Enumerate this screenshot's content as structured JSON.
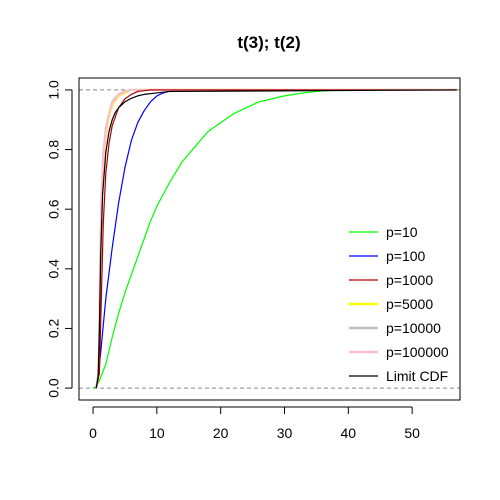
{
  "chart_data": {
    "type": "line",
    "title": "t(3); t(2)",
    "xlabel": "",
    "ylabel": "",
    "xlim": [
      -2.2,
      57.5
    ],
    "ylim": [
      -0.04,
      1.04
    ],
    "x_ticks": [
      0,
      10,
      20,
      30,
      40,
      50
    ],
    "y_ticks": [
      0.0,
      0.2,
      0.4,
      0.6,
      0.8,
      1.0
    ],
    "x_tick_labels": [
      "0",
      "10",
      "20",
      "30",
      "40",
      "50"
    ],
    "y_tick_labels": [
      "0.0",
      "0.2",
      "0.4",
      "0.6",
      "0.8",
      "1.0"
    ],
    "hlines": [
      0,
      1
    ],
    "legend_position": "right",
    "series": [
      {
        "name": "p=10",
        "color": "#00ff00",
        "x": [
          0,
          0.5,
          1,
          2,
          3,
          4,
          5,
          6,
          7,
          8,
          9,
          10,
          12,
          14,
          16,
          18,
          20,
          22,
          24,
          26,
          28,
          30,
          33,
          36,
          40,
          45,
          57
        ],
        "y": [
          0,
          0.005,
          0.025,
          0.08,
          0.17,
          0.25,
          0.32,
          0.38,
          0.44,
          0.5,
          0.56,
          0.61,
          0.69,
          0.76,
          0.81,
          0.86,
          0.89,
          0.92,
          0.94,
          0.96,
          0.97,
          0.98,
          0.99,
          0.997,
          1.0,
          1.0,
          1.0
        ]
      },
      {
        "name": "p=100",
        "color": "#0000ff",
        "x": [
          0.4,
          0.8,
          1.2,
          2,
          3,
          4,
          5,
          6,
          7,
          8,
          9,
          10,
          11,
          12,
          14,
          57
        ],
        "y": [
          0,
          0.04,
          0.12,
          0.3,
          0.47,
          0.62,
          0.74,
          0.83,
          0.89,
          0.93,
          0.96,
          0.98,
          0.99,
          0.996,
          1.0,
          1.0
        ]
      },
      {
        "name": "p=1000",
        "color": "#aa0000",
        "x": [
          0.5,
          1,
          1.3,
          1.6,
          2,
          2.5,
          3,
          4,
          5,
          6,
          7,
          9,
          57
        ],
        "y": [
          0,
          0.05,
          0.3,
          0.55,
          0.72,
          0.82,
          0.88,
          0.94,
          0.97,
          0.985,
          0.995,
          1.0,
          1.0
        ]
      },
      {
        "name": "p=5000",
        "color": "#ffff00",
        "x": [
          0.5,
          0.9,
          1.1,
          1.3,
          1.6,
          2,
          2.5,
          3,
          4,
          5,
          6,
          57
        ],
        "y": [
          0,
          0.05,
          0.35,
          0.58,
          0.75,
          0.85,
          0.91,
          0.95,
          0.98,
          0.99,
          1.0,
          1.0
        ]
      },
      {
        "name": "p=10000",
        "color": "#c0c0c0",
        "x": [
          0.5,
          0.9,
          1.1,
          1.3,
          1.6,
          2,
          2.5,
          3,
          4,
          5,
          6,
          57
        ],
        "y": [
          0,
          0.06,
          0.38,
          0.62,
          0.78,
          0.87,
          0.92,
          0.96,
          0.985,
          0.995,
          1.0,
          1.0
        ]
      },
      {
        "name": "p=100000",
        "color": "#ffc0cb",
        "x": [
          0.5,
          0.9,
          1.1,
          1.3,
          1.6,
          2,
          2.5,
          3,
          4,
          5,
          6,
          57
        ],
        "y": [
          0,
          0.05,
          0.36,
          0.6,
          0.77,
          0.86,
          0.92,
          0.955,
          0.983,
          0.993,
          1.0,
          1.0
        ]
      },
      {
        "name": "Limit CDF",
        "color": "#000000",
        "x": [
          0.5,
          0.8,
          1.0,
          1.2,
          1.5,
          2,
          2.5,
          3,
          3.5,
          4,
          5,
          6,
          7,
          8,
          10,
          12,
          57
        ],
        "y": [
          0,
          0.04,
          0.2,
          0.45,
          0.65,
          0.79,
          0.86,
          0.9,
          0.925,
          0.94,
          0.96,
          0.972,
          0.98,
          0.985,
          0.99,
          0.995,
          1.0
        ]
      }
    ]
  }
}
